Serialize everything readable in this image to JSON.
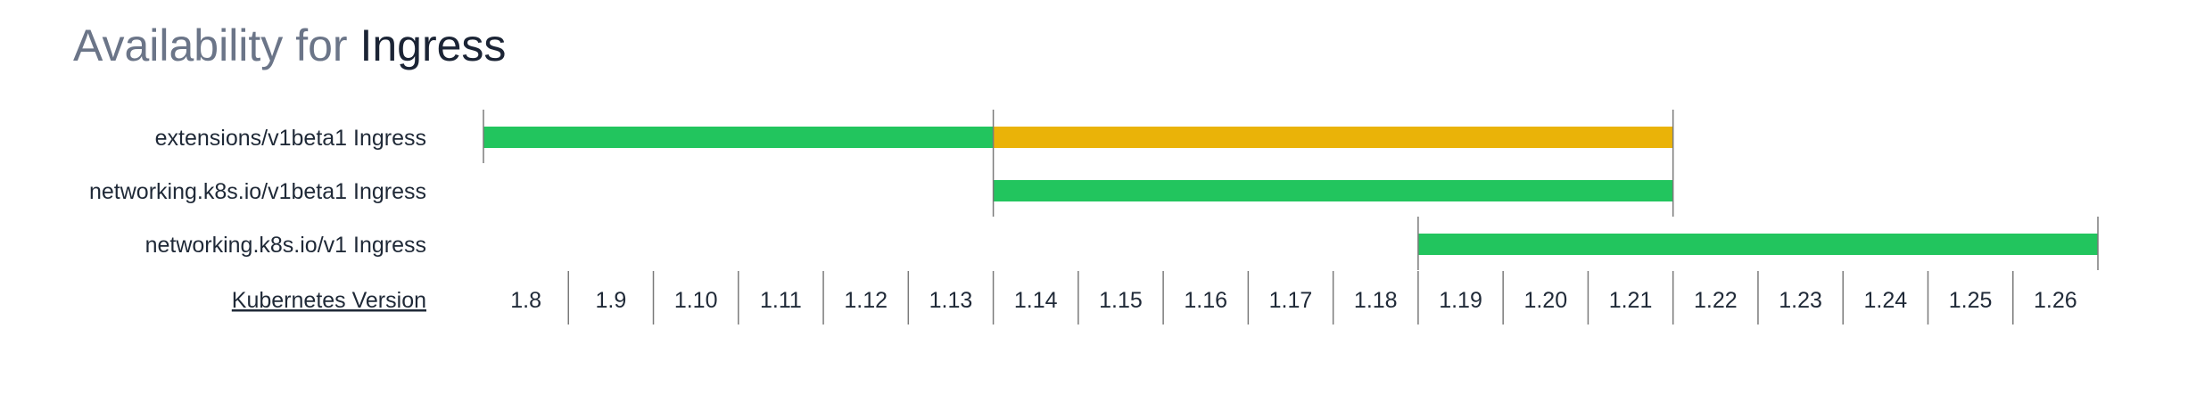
{
  "title": {
    "prefix": "Availability for",
    "subject": "Ingress"
  },
  "chart_data": {
    "type": "bar",
    "orientation": "horizontal-timeline",
    "x_axis_label": "Kubernetes Version",
    "versions": [
      "1.8",
      "1.9",
      "1.10",
      "1.11",
      "1.12",
      "1.13",
      "1.14",
      "1.15",
      "1.16",
      "1.17",
      "1.18",
      "1.19",
      "1.20",
      "1.21",
      "1.22",
      "1.23",
      "1.24",
      "1.25",
      "1.26"
    ],
    "rows": [
      {
        "label": "extensions/v1beta1 Ingress",
        "segments": [
          {
            "from": "1.8",
            "to": "1.13",
            "status": "available",
            "color": "#22c55e"
          },
          {
            "from": "1.14",
            "to": "1.21",
            "status": "deprecated",
            "color": "#eab308"
          }
        ]
      },
      {
        "label": "networking.k8s.io/v1beta1 Ingress",
        "segments": [
          {
            "from": "1.14",
            "to": "1.21",
            "status": "available",
            "color": "#22c55e"
          }
        ]
      },
      {
        "label": "networking.k8s.io/v1 Ingress",
        "segments": [
          {
            "from": "1.19",
            "to": "1.26",
            "status": "available",
            "color": "#22c55e"
          }
        ]
      }
    ],
    "colors": {
      "available": "#22c55e",
      "deprecated": "#eab308",
      "divider": "#7a7a7a"
    }
  }
}
